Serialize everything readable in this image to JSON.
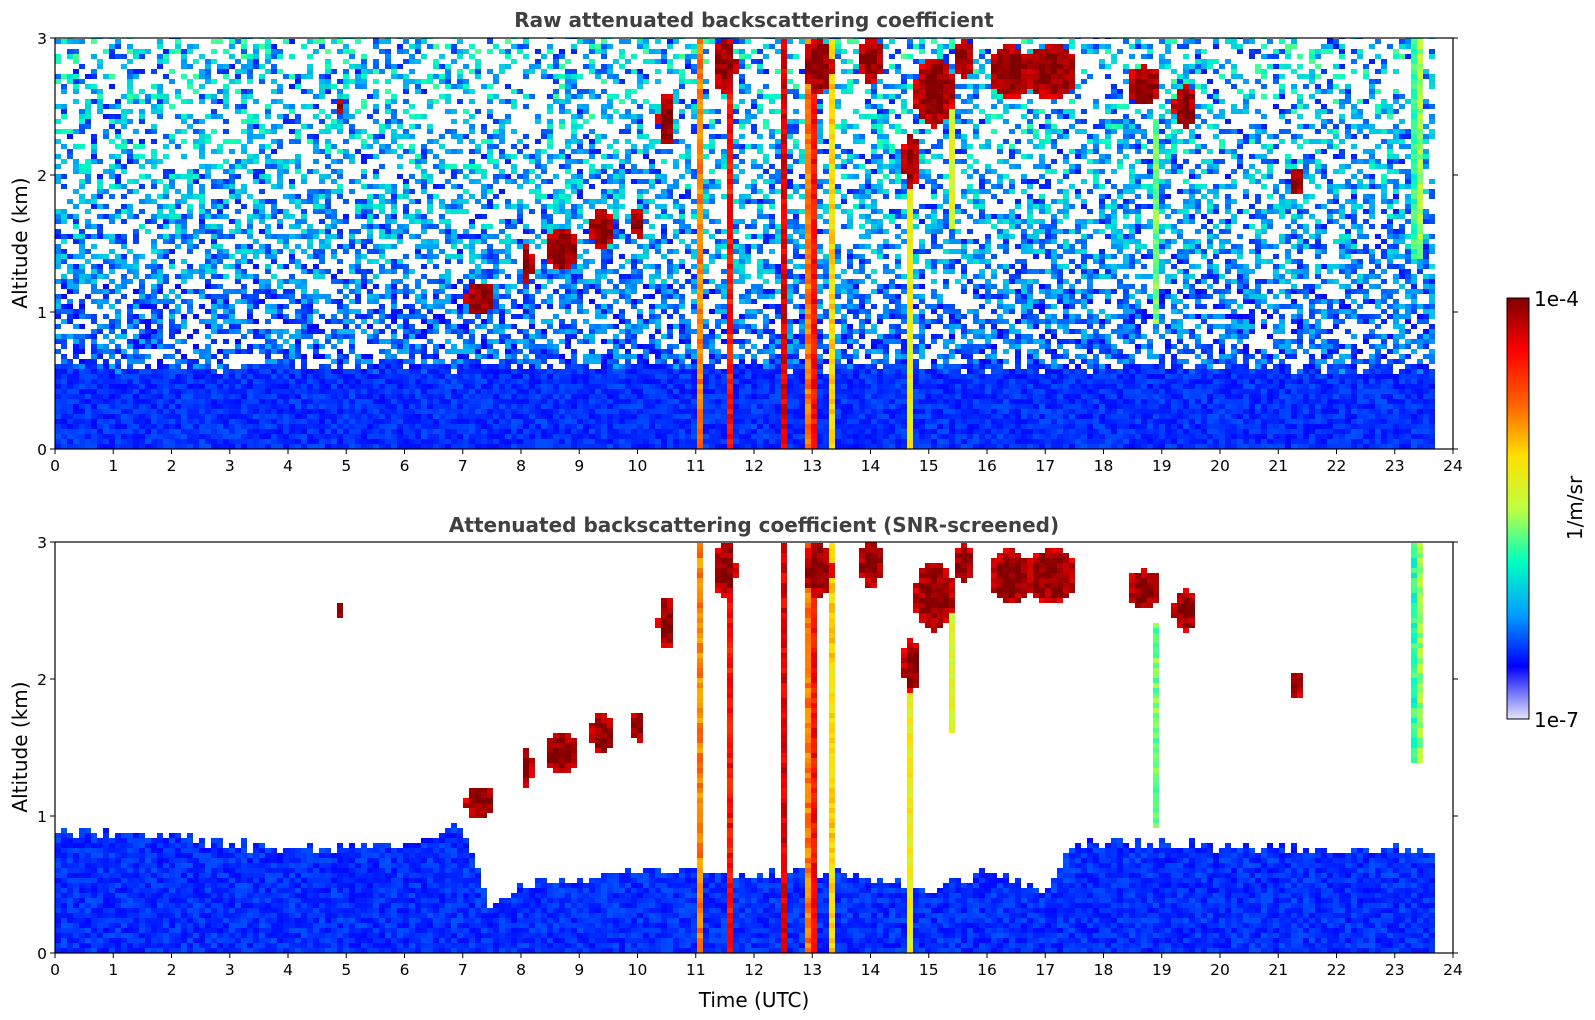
{
  "chart_data": [
    {
      "type": "heatmap",
      "title": "Raw attenuated backscattering coefficient",
      "xlabel": "",
      "ylabel": "Altitude (km)",
      "xlim": [
        0,
        24
      ],
      "ylim": [
        0,
        3
      ],
      "x_ticks": [
        "0",
        "1",
        "2",
        "3",
        "4",
        "5",
        "6",
        "7",
        "8",
        "9",
        "10",
        "11",
        "12",
        "13",
        "14",
        "15",
        "16",
        "17",
        "18",
        "19",
        "20",
        "21",
        "22",
        "23",
        "24"
      ],
      "y_ticks": [
        "0",
        "1",
        "2",
        "3"
      ],
      "data_end_time": 23.7,
      "noise": "high",
      "boundary_layer_top_km": 0.6,
      "cloud_streaks": [
        {
          "t": 11.1,
          "width": 0.14,
          "base": 0.0,
          "top": 3.0,
          "intensity": 0.85
        },
        {
          "t": 11.6,
          "width": 0.18,
          "base": 0.0,
          "top": 3.0,
          "intensity": 0.9
        },
        {
          "t": 12.5,
          "width": 0.12,
          "base": 0.0,
          "top": 3.0,
          "intensity": 1.0
        },
        {
          "t": 13.0,
          "width": 0.25,
          "base": 0.0,
          "top": 3.0,
          "intensity": 0.95
        },
        {
          "t": 13.3,
          "width": 0.12,
          "base": 0.0,
          "top": 3.0,
          "intensity": 0.85
        },
        {
          "t": 14.7,
          "width": 0.08,
          "base": 0.0,
          "top": 2.1,
          "intensity": 0.75
        },
        {
          "t": 23.4,
          "width": 0.2,
          "base": 1.4,
          "top": 3.0,
          "intensity": 0.55
        },
        {
          "t": 18.9,
          "width": 0.12,
          "base": 0.9,
          "top": 2.4,
          "intensity": 0.45
        },
        {
          "t": 15.4,
          "width": 0.1,
          "base": 1.6,
          "top": 2.6,
          "intensity": 0.55
        }
      ],
      "cloud_patches": [
        {
          "t": 7.3,
          "alt": 1.1,
          "dt": 0.25,
          "dz": 0.12
        },
        {
          "t": 8.1,
          "alt": 1.35,
          "dt": 0.1,
          "dz": 0.15
        },
        {
          "t": 8.7,
          "alt": 1.45,
          "dt": 0.3,
          "dz": 0.15
        },
        {
          "t": 9.4,
          "alt": 1.6,
          "dt": 0.2,
          "dz": 0.15
        },
        {
          "t": 10.0,
          "alt": 1.65,
          "dt": 0.1,
          "dz": 0.12
        },
        {
          "t": 10.5,
          "alt": 2.4,
          "dt": 0.15,
          "dz": 0.2
        },
        {
          "t": 11.5,
          "alt": 2.8,
          "dt": 0.2,
          "dz": 0.2
        },
        {
          "t": 13.1,
          "alt": 2.8,
          "dt": 0.25,
          "dz": 0.2
        },
        {
          "t": 14.0,
          "alt": 2.85,
          "dt": 0.2,
          "dz": 0.18
        },
        {
          "t": 14.7,
          "alt": 2.1,
          "dt": 0.15,
          "dz": 0.2
        },
        {
          "t": 15.1,
          "alt": 2.6,
          "dt": 0.35,
          "dz": 0.25
        },
        {
          "t": 15.6,
          "alt": 2.85,
          "dt": 0.15,
          "dz": 0.15
        },
        {
          "t": 16.4,
          "alt": 2.75,
          "dt": 0.35,
          "dz": 0.2
        },
        {
          "t": 17.1,
          "alt": 2.75,
          "dt": 0.45,
          "dz": 0.2
        },
        {
          "t": 18.7,
          "alt": 2.65,
          "dt": 0.3,
          "dz": 0.15
        },
        {
          "t": 19.4,
          "alt": 2.5,
          "dt": 0.2,
          "dz": 0.15
        },
        {
          "t": 21.3,
          "alt": 1.95,
          "dt": 0.12,
          "dz": 0.1
        },
        {
          "t": 4.9,
          "alt": 2.5,
          "dt": 0.08,
          "dz": 0.06
        }
      ]
    },
    {
      "type": "heatmap",
      "title": "Attenuated backscattering coefficient (SNR-screened)",
      "xlabel": "Time (UTC)",
      "ylabel": "Altitude (km)",
      "xlim": [
        0,
        24
      ],
      "ylim": [
        0,
        3
      ],
      "x_ticks": [
        "0",
        "1",
        "2",
        "3",
        "4",
        "5",
        "6",
        "7",
        "8",
        "9",
        "10",
        "11",
        "12",
        "13",
        "14",
        "15",
        "16",
        "17",
        "18",
        "19",
        "20",
        "21",
        "22",
        "23",
        "24"
      ],
      "y_ticks": [
        "0",
        "1",
        "2",
        "3"
      ],
      "data_end_time": 23.7,
      "noise": "screened",
      "boundary_layer_profile": [
        [
          0,
          0.9
        ],
        [
          2,
          0.85
        ],
        [
          4,
          0.75
        ],
        [
          6,
          0.8
        ],
        [
          7,
          0.95
        ],
        [
          7.5,
          0.3
        ],
        [
          8,
          0.5
        ],
        [
          9,
          0.55
        ],
        [
          10,
          0.6
        ],
        [
          11,
          0.6
        ],
        [
          12,
          0.55
        ],
        [
          13,
          0.6
        ],
        [
          14,
          0.55
        ],
        [
          15,
          0.45
        ],
        [
          16,
          0.6
        ],
        [
          17,
          0.45
        ],
        [
          17.5,
          0.8
        ],
        [
          19,
          0.8
        ],
        [
          21,
          0.75
        ],
        [
          23.7,
          0.75
        ]
      ],
      "same_clouds_as_panel": 1
    }
  ],
  "colorbar": {
    "label": "1/m/sr",
    "max_label": "1e-4",
    "min_label": "1e-7",
    "colormap": "jet",
    "stops": [
      "#e6e6f8",
      "#0000ff",
      "#00a0ff",
      "#00ffc0",
      "#c0ff40",
      "#ffe000",
      "#ff6000",
      "#ff0000",
      "#800000"
    ]
  }
}
